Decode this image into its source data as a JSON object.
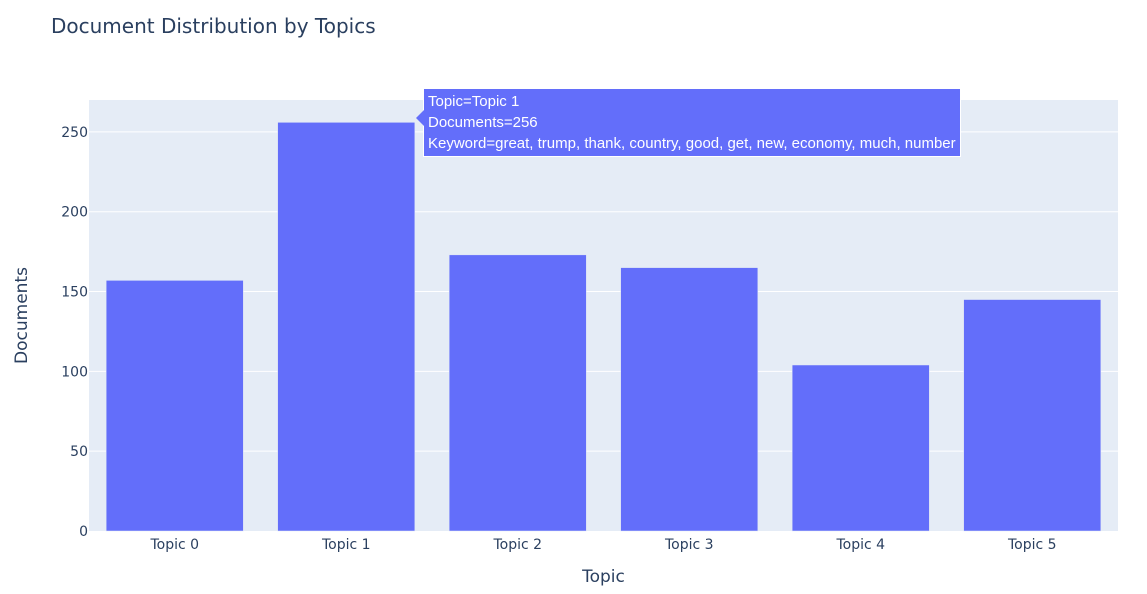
{
  "chart_data": {
    "type": "bar",
    "title": "Document Distribution by Topics",
    "xlabel": "Topic",
    "ylabel": "Documents",
    "categories": [
      "Topic 0",
      "Topic 1",
      "Topic 2",
      "Topic 3",
      "Topic 4",
      "Topic 5"
    ],
    "values": [
      157,
      256,
      173,
      165,
      104,
      145
    ],
    "ylim": [
      0,
      270
    ],
    "yticks": [
      0,
      50,
      100,
      150,
      200,
      250
    ],
    "grid": true,
    "bar_color": "#636efa",
    "plot_background": "#e5ecf6",
    "hover": {
      "category_index": 1,
      "lines": [
        "Topic=Topic 1",
        "Documents=256",
        "Keyword=great, trump, thank, country, good, get, new, economy, much, number"
      ]
    }
  }
}
